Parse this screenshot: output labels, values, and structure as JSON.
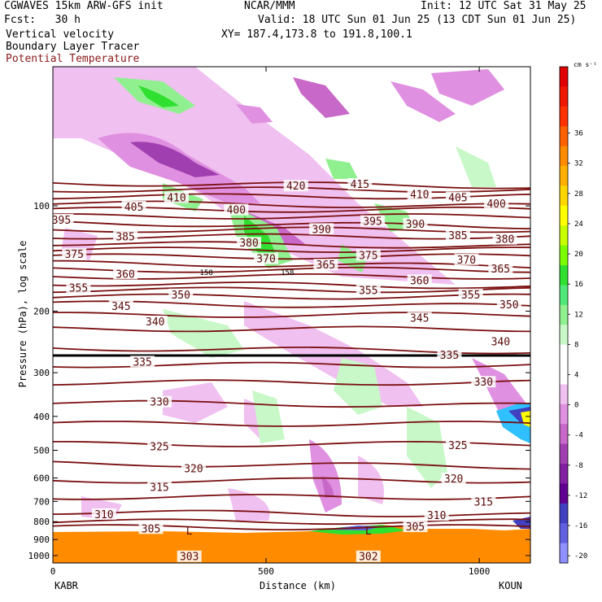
{
  "header": {
    "line1_left": "CGWAVES 15km ARW-GFS init",
    "line1_mid": "NCAR/MMM",
    "line1_right": "Init: 12 UTC Sat 31 May 25",
    "line2_left": "Fcst:   30 h",
    "line2_right": "Valid: 18 UTC Sun 01 Jun 25 (13 CDT Sun 01 Jun 25)",
    "line3_left": "Vertical velocity",
    "line3_right": "XY= 187.4,173.8 to 191.8,100.1",
    "line4_left": "Boundary Layer Tracer",
    "line5_left": "Potential Temperature",
    "line5_color": "#8b1a1a"
  },
  "chart_data": {
    "type": "heatmap",
    "xlabel": "Distance (km)",
    "ylabel": "Pressure (hPa), log scale",
    "x_ticks": [
      0,
      500,
      1000
    ],
    "x_range": [
      0,
      1120
    ],
    "y_ticks": [
      100,
      200,
      300,
      400,
      500,
      600,
      700,
      800,
      900,
      1000
    ],
    "y_range_hPa": [
      1050,
      40
    ],
    "y_scale": "log",
    "left_station": "KABR",
    "right_station": "KOUN",
    "colorbar": {
      "unit": "cm s⁻¹",
      "tick_labels": [
        "36",
        "32",
        "28",
        "24",
        "20",
        "16",
        "12",
        "8",
        "4",
        "0",
        "-4",
        "-8",
        "-12",
        "-16",
        "-20"
      ],
      "colors": [
        "#e00000",
        "#f01800",
        "#ff3200",
        "#ff6000",
        "#ff8c00",
        "#ffb000",
        "#ffd700",
        "#ffff00",
        "#c8ff00",
        "#7cfc00",
        "#30e030",
        "#50e878",
        "#90f090",
        "#c8f8c8",
        "#ffffff",
        "#ffffff",
        "#f0c0f0",
        "#e090e0",
        "#c868c8",
        "#a040b0",
        "#8020a0",
        "#600090",
        "#4040c0",
        "#6060e0",
        "#9090ff"
      ]
    },
    "theta_labels": [
      {
        "text": "420",
        "x": 570,
        "p": 88
      },
      {
        "text": "415",
        "x": 720,
        "p": 87
      },
      {
        "text": "410",
        "x": 290,
        "p": 95
      },
      {
        "text": "410",
        "x": 860,
        "p": 93
      },
      {
        "text": "405",
        "x": 190,
        "p": 101
      },
      {
        "text": "405",
        "x": 950,
        "p": 95
      },
      {
        "text": "400",
        "x": 430,
        "p": 103
      },
      {
        "text": "400",
        "x": 1040,
        "p": 99
      },
      {
        "text": "395",
        "x": 20,
        "p": 110
      },
      {
        "text": "395",
        "x": 750,
        "p": 111
      },
      {
        "text": "390",
        "x": 630,
        "p": 117
      },
      {
        "text": "390",
        "x": 850,
        "p": 113
      },
      {
        "text": "385",
        "x": 170,
        "p": 123
      },
      {
        "text": "385",
        "x": 950,
        "p": 122
      },
      {
        "text": "380",
        "x": 460,
        "p": 128
      },
      {
        "text": "380",
        "x": 1060,
        "p": 125
      },
      {
        "text": "375",
        "x": 50,
        "p": 138
      },
      {
        "text": "375",
        "x": 740,
        "p": 139
      },
      {
        "text": "370",
        "x": 500,
        "p": 142
      },
      {
        "text": "370",
        "x": 970,
        "p": 143
      },
      {
        "text": "365",
        "x": 640,
        "p": 148
      },
      {
        "text": "365",
        "x": 1050,
        "p": 152
      },
      {
        "text": "360",
        "x": 170,
        "p": 157
      },
      {
        "text": "360",
        "x": 860,
        "p": 164
      },
      {
        "text": "355",
        "x": 60,
        "p": 172
      },
      {
        "text": "355",
        "x": 740,
        "p": 175
      },
      {
        "text": "355",
        "x": 980,
        "p": 180
      },
      {
        "text": "350",
        "x": 300,
        "p": 180
      },
      {
        "text": "350",
        "x": 1070,
        "p": 192
      },
      {
        "text": "345",
        "x": 160,
        "p": 194
      },
      {
        "text": "345",
        "x": 860,
        "p": 210
      },
      {
        "text": "340",
        "x": 240,
        "p": 215
      },
      {
        "text": "340",
        "x": 1050,
        "p": 245
      },
      {
        "text": "335",
        "x": 210,
        "p": 280
      },
      {
        "text": "335",
        "x": 930,
        "p": 268
      },
      {
        "text": "330",
        "x": 250,
        "p": 365
      },
      {
        "text": "330",
        "x": 1010,
        "p": 320
      },
      {
        "text": "325",
        "x": 250,
        "p": 490
      },
      {
        "text": "325",
        "x": 950,
        "p": 485
      },
      {
        "text": "320",
        "x": 330,
        "p": 565
      },
      {
        "text": "320",
        "x": 940,
        "p": 605
      },
      {
        "text": "315",
        "x": 250,
        "p": 640
      },
      {
        "text": "315",
        "x": 1010,
        "p": 705
      },
      {
        "text": "310",
        "x": 120,
        "p": 765
      },
      {
        "text": "310",
        "x": 900,
        "p": 770
      },
      {
        "text": "305",
        "x": 230,
        "p": 840
      },
      {
        "text": "305",
        "x": 850,
        "p": 830
      },
      {
        "text": "303",
        "x": 320,
        "p": 1010
      },
      {
        "text": "302",
        "x": 740,
        "p": 1010
      }
    ],
    "tropopause_labels": [
      {
        "text": "158",
        "x": 360,
        "p": 155
      },
      {
        "text": "158",
        "x": 550,
        "p": 155
      }
    ],
    "low_labels": [
      {
        "text": "L",
        "x": 320,
        "p": 870
      },
      {
        "text": "L",
        "x": 740,
        "p": 870
      }
    ]
  }
}
